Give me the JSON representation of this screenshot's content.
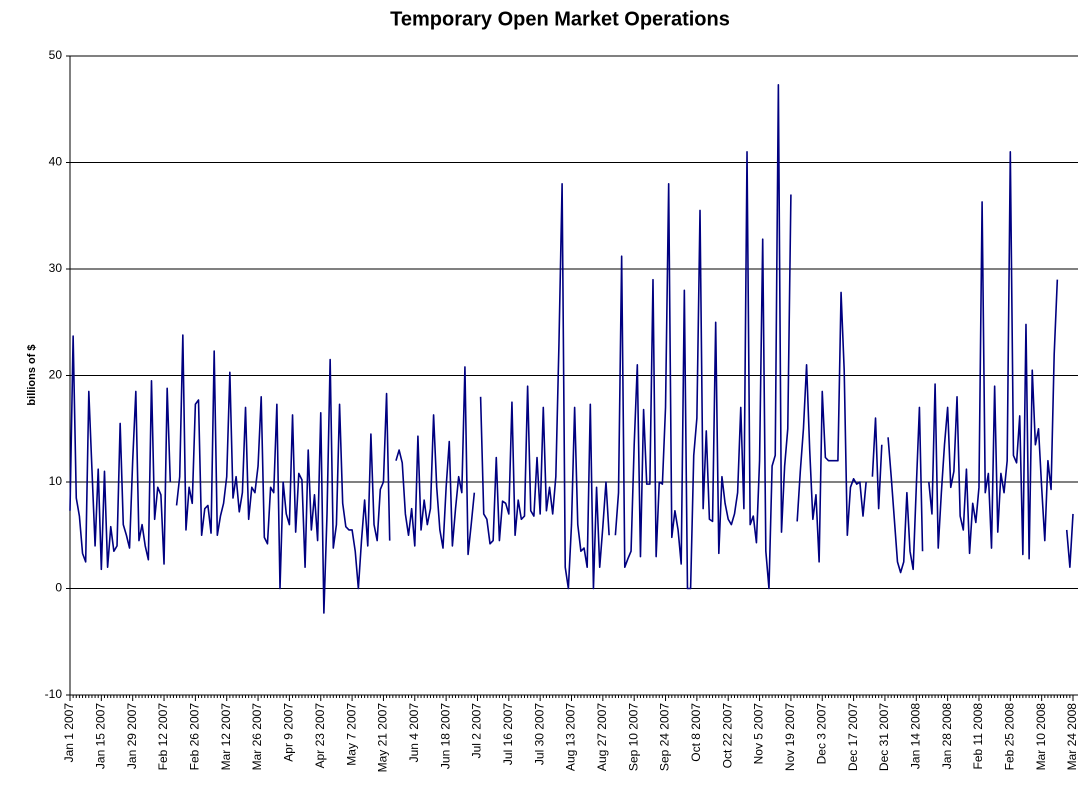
{
  "chart_data": {
    "type": "line",
    "title": "Temporary Open Market Operations",
    "y_label": "billions of $",
    "categories": [
      "Jan 1 2007",
      null,
      null,
      null,
      null,
      null,
      null,
      null,
      null,
      null,
      "Jan 15 2007",
      null,
      null,
      null,
      null,
      null,
      null,
      null,
      null,
      null,
      "Jan 29 2007",
      null,
      null,
      null,
      null,
      null,
      null,
      null,
      null,
      null,
      "Feb 12 2007",
      null,
      null,
      null,
      null,
      null,
      null,
      null,
      null,
      null,
      "Feb 26 2007",
      null,
      null,
      null,
      null,
      null,
      null,
      null,
      null,
      null,
      "Mar 12 2007",
      null,
      null,
      null,
      null,
      null,
      null,
      null,
      null,
      null,
      "Mar 26 2007",
      null,
      null,
      null,
      null,
      null,
      null,
      null,
      null,
      null,
      "Apr 9 2007",
      null,
      null,
      null,
      null,
      null,
      null,
      null,
      null,
      null,
      "Apr 23 2007",
      null,
      null,
      null,
      null,
      null,
      null,
      null,
      null,
      null,
      "May 7 2007",
      null,
      null,
      null,
      null,
      null,
      null,
      null,
      null,
      null,
      "May 21 2007",
      null,
      null,
      null,
      null,
      null,
      null,
      null,
      null,
      null,
      "Jun 4 2007",
      null,
      null,
      null,
      null,
      null,
      null,
      null,
      null,
      null,
      "Jun 18 2007",
      null,
      null,
      null,
      null,
      null,
      null,
      null,
      null,
      null,
      "Jul 2 2007",
      null,
      null,
      null,
      null,
      null,
      null,
      null,
      null,
      null,
      "Jul 16 2007",
      null,
      null,
      null,
      null,
      null,
      null,
      null,
      null,
      null,
      "Jul 30 2007",
      null,
      null,
      null,
      null,
      null,
      null,
      null,
      null,
      null,
      "Aug 13 2007",
      null,
      null,
      null,
      null,
      null,
      null,
      null,
      null,
      null,
      "Aug 27 2007",
      null,
      null,
      null,
      null,
      null,
      null,
      null,
      null,
      null,
      "Sep 10 2007",
      null,
      null,
      null,
      null,
      null,
      null,
      null,
      null,
      null,
      "Sep 24 2007",
      null,
      null,
      null,
      null,
      null,
      null,
      null,
      null,
      null,
      "Oct 8 2007",
      null,
      null,
      null,
      null,
      null,
      null,
      null,
      null,
      null,
      "Oct 22 2007",
      null,
      null,
      null,
      null,
      null,
      null,
      null,
      null,
      null,
      "Nov 5 2007",
      null,
      null,
      null,
      null,
      null,
      null,
      null,
      null,
      null,
      "Nov 19 2007",
      null,
      null,
      null,
      null,
      null,
      null,
      null,
      null,
      null,
      "Dec 3 2007",
      null,
      null,
      null,
      null,
      null,
      null,
      null,
      null,
      null,
      "Dec 17 2007",
      null,
      null,
      null,
      null,
      null,
      null,
      null,
      null,
      null,
      "Dec 31 2007",
      null,
      null,
      null,
      null,
      null,
      null,
      null,
      null,
      null,
      "Jan 14 2008",
      null,
      null,
      null,
      null,
      null,
      null,
      null,
      null,
      null,
      "Jan 28 2008",
      null,
      null,
      null,
      null,
      null,
      null,
      null,
      null,
      null,
      "Feb 11 2008",
      null,
      null,
      null,
      null,
      null,
      null,
      null,
      null,
      null,
      "Feb 25 2008",
      null,
      null,
      null,
      null,
      null,
      null,
      null,
      null,
      null,
      "Mar 10 2008",
      null,
      null,
      null,
      null,
      null,
      null,
      null,
      null,
      null,
      "Mar 24 2008"
    ],
    "values": [
      7.3,
      23.7,
      8.5,
      6.8,
      3.3,
      2.5,
      18.5,
      11.2,
      4.0,
      11.2,
      1.8,
      11.0,
      2.0,
      5.8,
      3.5,
      4.0,
      15.5,
      6.0,
      5.0,
      3.8,
      12.0,
      18.5,
      4.5,
      6.0,
      4.0,
      2.7,
      19.5,
      6.5,
      9.5,
      8.8,
      2.3,
      18.8,
      10.0,
      null,
      7.8,
      10.5,
      23.8,
      5.5,
      9.5,
      8.0,
      17.3,
      17.7,
      5.0,
      7.5,
      7.8,
      5.2,
      22.3,
      5.0,
      6.8,
      8.0,
      10.5,
      20.3,
      8.5,
      10.5,
      7.2,
      9.0,
      17.0,
      6.5,
      9.5,
      9.0,
      11.5,
      18.0,
      4.8,
      4.2,
      9.5,
      9.0,
      17.3,
      0.0,
      10.0,
      7.0,
      6.0,
      16.3,
      5.3,
      10.8,
      10.2,
      2.0,
      13.0,
      5.5,
      8.8,
      4.5,
      16.5,
      -2.3,
      7.0,
      21.5,
      3.8,
      6.0,
      17.3,
      8.0,
      5.8,
      5.5,
      5.5,
      3.5,
      0.0,
      4.5,
      8.3,
      4.0,
      14.5,
      6.0,
      4.5,
      9.3,
      10.0,
      18.3,
      4.5,
      null,
      12.0,
      13.0,
      11.8,
      7.0,
      5.0,
      7.5,
      4.0,
      14.3,
      5.5,
      8.3,
      6.0,
      7.5,
      16.3,
      9.5,
      5.5,
      3.8,
      9.5,
      13.8,
      4.0,
      7.5,
      10.5,
      9.0,
      20.8,
      3.2,
      6.0,
      9.0,
      null,
      18.0,
      7.0,
      6.5,
      4.2,
      4.5,
      12.3,
      4.5,
      8.2,
      8.0,
      7.0,
      17.5,
      5.0,
      8.3,
      6.5,
      6.8,
      19.0,
      7.3,
      6.8,
      12.3,
      7.0,
      17.0,
      7.3,
      9.5,
      7.0,
      10.5,
      23.0,
      38.0,
      2.0,
      0.0,
      6.0,
      17.0,
      6.0,
      3.5,
      3.8,
      2.0,
      17.3,
      0.0,
      9.5,
      2.0,
      5.8,
      10.0,
      5.0,
      null,
      5.0,
      9.0,
      31.2,
      2.0,
      2.8,
      3.5,
      13.5,
      21.0,
      3.0,
      16.8,
      9.8,
      9.8,
      29.0,
      3.0,
      10.0,
      9.8,
      17.0,
      38.0,
      4.8,
      7.3,
      5.5,
      2.3,
      28.0,
      0.0,
      0.0,
      12.5,
      16.0,
      35.5,
      7.5,
      14.8,
      6.5,
      6.3,
      25.0,
      3.3,
      10.5,
      8.0,
      6.5,
      6.0,
      7.0,
      9.0,
      17.0,
      7.5,
      41.0,
      6.0,
      6.8,
      4.3,
      12.0,
      32.8,
      3.5,
      0.0,
      11.5,
      12.5,
      47.3,
      5.3,
      11.5,
      15.0,
      37.0,
      null,
      6.3,
      11.0,
      15.0,
      21.0,
      13.0,
      6.5,
      8.8,
      2.5,
      18.5,
      12.3,
      12.0,
      12.0,
      12.0,
      12.0,
      27.8,
      20.5,
      5.0,
      9.5,
      10.3,
      9.8,
      10.0,
      6.8,
      10.0,
      null,
      10.5,
      16.0,
      7.5,
      13.5,
      null,
      14.2,
      10.5,
      6.5,
      2.5,
      1.5,
      2.5,
      9.0,
      3.5,
      1.8,
      9.5,
      17.0,
      3.5,
      null,
      10.0,
      7.0,
      19.2,
      3.8,
      9.0,
      13.5,
      17.0,
      9.5,
      11.0,
      18.0,
      6.8,
      5.5,
      11.2,
      3.3,
      8.0,
      6.2,
      9.5,
      36.3,
      9.0,
      10.8,
      3.8,
      19.0,
      5.3,
      10.8,
      9.0,
      12.0,
      41.0,
      12.5,
      11.8,
      16.2,
      3.2,
      24.8,
      2.8,
      20.5,
      13.5,
      15.0,
      9.5,
      4.5,
      12.0,
      9.3,
      22.0,
      29.0,
      null,
      null,
      5.5,
      2.0,
      7.0
    ],
    "color": "#000080",
    "ylim": [
      -10,
      50
    ],
    "yticks": [
      -10,
      0,
      10,
      20,
      30,
      40,
      50
    ],
    "grid": true
  }
}
